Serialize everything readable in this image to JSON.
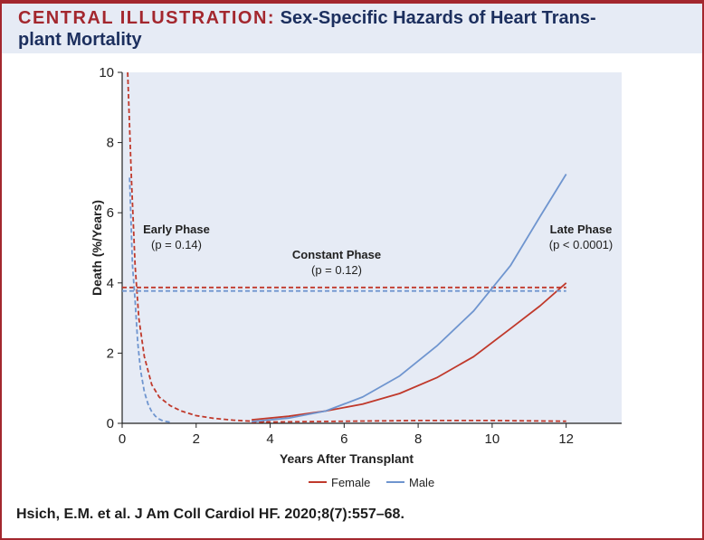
{
  "header": {
    "lead": "CENTRAL ILLUSTRATION:",
    "title_line1": "Sex-Specific Hazards of Heart Trans-",
    "title_line2": "plant Mortality"
  },
  "citation": "Hsich, E.M. et al. J Am Coll Cardiol HF. 2020;8(7):557–68.",
  "colors": {
    "female": "#c0392b",
    "male": "#6f95cf",
    "plot_bg": "#e6ebf5",
    "accent": "#a3272e",
    "title": "#1c2f5e"
  },
  "chart_data": {
    "type": "line",
    "title": "",
    "xlabel": "Years After Transplant",
    "ylabel": "Death (%/Years)",
    "xlim": [
      0,
      13.5
    ],
    "ylim": [
      0,
      10
    ],
    "xticks": [
      0,
      2,
      4,
      6,
      8,
      10,
      12
    ],
    "yticks": [
      0,
      2,
      4,
      6,
      8,
      10
    ],
    "legend_position": "bottom-center",
    "legend": [
      "Female",
      "Male"
    ],
    "annotations": [
      {
        "line1": "Early Phase",
        "line2": "(p = 0.14)"
      },
      {
        "line1": "Constant Phase",
        "line2": "(p = 0.12)"
      },
      {
        "line1": "Late Phase",
        "line2": "(p < 0.0001)"
      }
    ],
    "series": [
      {
        "name": "Female",
        "phase": "Early Phase",
        "style": "dashed",
        "x": [
          0.15,
          0.25,
          0.35,
          0.45,
          0.6,
          0.8,
          1.0,
          1.3,
          1.6,
          2.0,
          2.5,
          3.0,
          3.5,
          4.0
        ],
        "y": [
          10.0,
          7.0,
          4.5,
          3.0,
          1.9,
          1.1,
          0.75,
          0.5,
          0.35,
          0.22,
          0.14,
          0.09,
          0.06,
          0.04
        ]
      },
      {
        "name": "Female",
        "phase": "Constant Phase",
        "style": "dashed",
        "x": [
          0,
          12
        ],
        "y": [
          3.87,
          3.87
        ]
      },
      {
        "name": "Female",
        "phase": "Constant Phase (low)",
        "style": "dashed",
        "x": [
          3.5,
          6,
          8,
          10,
          12
        ],
        "y": [
          0.03,
          0.06,
          0.08,
          0.08,
          0.06
        ]
      },
      {
        "name": "Female",
        "phase": "Late Phase",
        "style": "solid",
        "x": [
          3.5,
          4.5,
          5.5,
          6.5,
          7.5,
          8.5,
          9.5,
          10.5,
          11.3,
          12
        ],
        "y": [
          0.1,
          0.2,
          0.35,
          0.55,
          0.85,
          1.3,
          1.9,
          2.7,
          3.35,
          4.0
        ]
      },
      {
        "name": "Male",
        "phase": "Early Phase",
        "style": "dashed",
        "x": [
          0.2,
          0.28,
          0.35,
          0.42,
          0.5,
          0.6,
          0.7,
          0.8,
          0.9,
          1.0,
          1.1,
          1.3
        ],
        "y": [
          7.0,
          4.5,
          3.5,
          2.3,
          1.5,
          0.9,
          0.55,
          0.33,
          0.2,
          0.12,
          0.07,
          0.03
        ]
      },
      {
        "name": "Male",
        "phase": "Constant Phase",
        "style": "dashed",
        "x": [
          0,
          12
        ],
        "y": [
          3.77,
          3.77
        ]
      },
      {
        "name": "Male",
        "phase": "Late Phase",
        "style": "solid",
        "x": [
          3.5,
          4.5,
          5.5,
          6.5,
          7.5,
          8.5,
          9.5,
          10.5,
          11.3,
          12
        ],
        "y": [
          0.05,
          0.15,
          0.35,
          0.75,
          1.35,
          2.2,
          3.2,
          4.5,
          5.9,
          7.1
        ]
      }
    ]
  }
}
